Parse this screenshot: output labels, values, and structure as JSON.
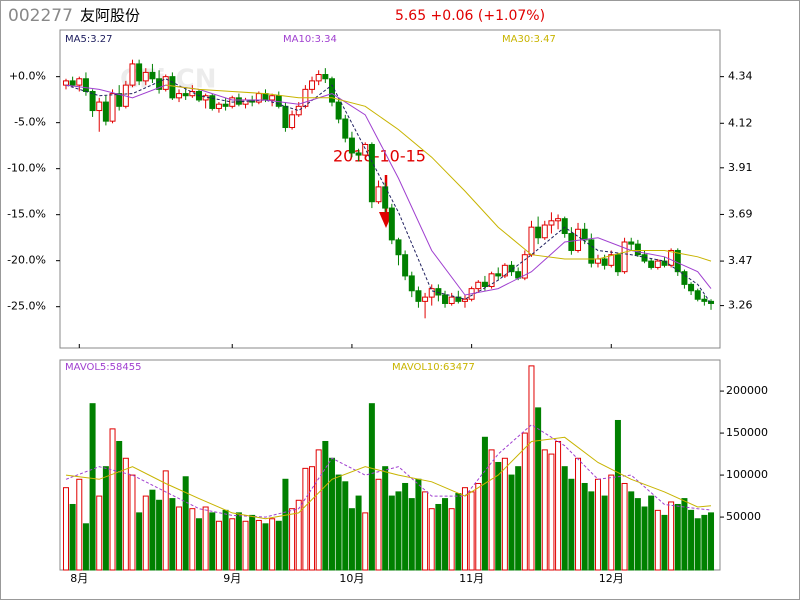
{
  "header": {
    "code": "002277",
    "name": "友阿股份",
    "quote": "5.65 +0.06 (+1.07%)"
  },
  "watermark": "CFi.CN",
  "chart_data": [
    {
      "type": "candlestick",
      "annotation": "2018-10-15",
      "up_color": "#e00000",
      "down_color": "#008000",
      "xlim": [
        -0.9,
        98.35
      ],
      "xticks": [
        {
          "value": 2,
          "label": "8月"
        },
        {
          "value": 25,
          "label": "9月"
        },
        {
          "value": 43,
          "label": "10月"
        },
        {
          "value": 61,
          "label": "11月"
        },
        {
          "value": 82,
          "label": "12月"
        }
      ],
      "ylim": [
        3.06,
        4.56
      ],
      "yticks": [
        4.34,
        4.12,
        3.91,
        3.69,
        3.47,
        3.26
      ],
      "y2lim": [
        -29.49,
        5.07
      ],
      "y2ticks": [
        {
          "value": 0,
          "label": "+0.0%"
        },
        {
          "value": -5,
          "label": "-5.0%"
        },
        {
          "value": -10,
          "label": "-10.0%"
        },
        {
          "value": -15,
          "label": "-15.0%"
        },
        {
          "value": -20,
          "label": "-20.0%"
        },
        {
          "value": -25,
          "label": "-25.0%"
        }
      ],
      "ohlc": [
        [
          4.3,
          4.33,
          4.28,
          4.32
        ],
        [
          4.32,
          4.34,
          4.29,
          4.3
        ],
        [
          4.3,
          4.34,
          4.27,
          4.33
        ],
        [
          4.33,
          4.36,
          4.25,
          4.27
        ],
        [
          4.27,
          4.28,
          4.15,
          4.18
        ],
        [
          4.18,
          4.24,
          4.08,
          4.22
        ],
        [
          4.22,
          4.25,
          4.11,
          4.13
        ],
        [
          4.13,
          4.28,
          4.12,
          4.26
        ],
        [
          4.26,
          4.3,
          4.18,
          4.2
        ],
        [
          4.2,
          4.32,
          4.19,
          4.3
        ],
        [
          4.3,
          4.42,
          4.29,
          4.4
        ],
        [
          4.4,
          4.42,
          4.3,
          4.32
        ],
        [
          4.32,
          4.38,
          4.3,
          4.36
        ],
        [
          4.36,
          4.4,
          4.31,
          4.33
        ],
        [
          4.33,
          4.37,
          4.26,
          4.28
        ],
        [
          4.28,
          4.35,
          4.27,
          4.34
        ],
        [
          4.34,
          4.36,
          4.23,
          4.24
        ],
        [
          4.24,
          4.28,
          4.22,
          4.26
        ],
        [
          4.26,
          4.29,
          4.23,
          4.25
        ],
        [
          4.25,
          4.3,
          4.24,
          4.27
        ],
        [
          4.27,
          4.28,
          4.22,
          4.23
        ],
        [
          4.23,
          4.26,
          4.19,
          4.25
        ],
        [
          4.25,
          4.26,
          4.18,
          4.19
        ],
        [
          4.19,
          4.22,
          4.17,
          4.21
        ],
        [
          4.21,
          4.24,
          4.18,
          4.2
        ],
        [
          4.2,
          4.25,
          4.19,
          4.24
        ],
        [
          4.24,
          4.26,
          4.2,
          4.21
        ],
        [
          4.21,
          4.24,
          4.19,
          4.23
        ],
        [
          4.23,
          4.25,
          4.2,
          4.22
        ],
        [
          4.22,
          4.27,
          4.21,
          4.26
        ],
        [
          4.26,
          4.28,
          4.22,
          4.23
        ],
        [
          4.23,
          4.26,
          4.2,
          4.25
        ],
        [
          4.25,
          4.27,
          4.19,
          4.2
        ],
        [
          4.2,
          4.22,
          4.08,
          4.1
        ],
        [
          4.1,
          4.18,
          4.09,
          4.16
        ],
        [
          4.16,
          4.22,
          4.15,
          4.2
        ],
        [
          4.2,
          4.3,
          4.19,
          4.28
        ],
        [
          4.28,
          4.34,
          4.26,
          4.32
        ],
        [
          4.32,
          4.37,
          4.3,
          4.35
        ],
        [
          4.35,
          4.38,
          4.31,
          4.33
        ],
        [
          4.33,
          4.34,
          4.2,
          4.22
        ],
        [
          4.22,
          4.24,
          4.12,
          4.14
        ],
        [
          4.14,
          4.16,
          4.03,
          4.05
        ],
        [
          4.05,
          4.08,
          3.96,
          3.98
        ],
        [
          3.98,
          4.0,
          3.94,
          3.97
        ],
        [
          3.97,
          4.03,
          3.95,
          4.02
        ],
        [
          4.02,
          4.03,
          3.72,
          3.75
        ],
        [
          3.75,
          3.85,
          3.74,
          3.82
        ],
        [
          3.82,
          3.84,
          3.7,
          3.72
        ],
        [
          3.72,
          3.74,
          3.55,
          3.57
        ],
        [
          3.57,
          3.58,
          3.45,
          3.5
        ],
        [
          3.5,
          3.52,
          3.38,
          3.4
        ],
        [
          3.4,
          3.42,
          3.3,
          3.33
        ],
        [
          3.33,
          3.35,
          3.25,
          3.28
        ],
        [
          3.28,
          3.32,
          3.2,
          3.3
        ],
        [
          3.3,
          3.36,
          3.26,
          3.34
        ],
        [
          3.34,
          3.36,
          3.28,
          3.31
        ],
        [
          3.31,
          3.33,
          3.25,
          3.27
        ],
        [
          3.27,
          3.32,
          3.26,
          3.3
        ],
        [
          3.3,
          3.33,
          3.27,
          3.28
        ],
        [
          3.28,
          3.31,
          3.25,
          3.29
        ],
        [
          3.29,
          3.35,
          3.28,
          3.34
        ],
        [
          3.34,
          3.38,
          3.32,
          3.37
        ],
        [
          3.37,
          3.4,
          3.33,
          3.35
        ],
        [
          3.35,
          3.42,
          3.34,
          3.41
        ],
        [
          3.41,
          3.44,
          3.38,
          3.4
        ],
        [
          3.4,
          3.46,
          3.39,
          3.45
        ],
        [
          3.45,
          3.47,
          3.4,
          3.42
        ],
        [
          3.42,
          3.44,
          3.38,
          3.39
        ],
        [
          3.39,
          3.52,
          3.38,
          3.5
        ],
        [
          3.5,
          3.66,
          3.49,
          3.63
        ],
        [
          3.63,
          3.68,
          3.55,
          3.58
        ],
        [
          3.58,
          3.66,
          3.57,
          3.64
        ],
        [
          3.64,
          3.7,
          3.6,
          3.66
        ],
        [
          3.66,
          3.69,
          3.62,
          3.67
        ],
        [
          3.67,
          3.68,
          3.58,
          3.6
        ],
        [
          3.6,
          3.63,
          3.5,
          3.52
        ],
        [
          3.52,
          3.65,
          3.51,
          3.62
        ],
        [
          3.62,
          3.65,
          3.55,
          3.57
        ],
        [
          3.57,
          3.6,
          3.44,
          3.46
        ],
        [
          3.46,
          3.5,
          3.44,
          3.48
        ],
        [
          3.48,
          3.5,
          3.43,
          3.45
        ],
        [
          3.45,
          3.52,
          3.44,
          3.5
        ],
        [
          3.5,
          3.51,
          3.4,
          3.42
        ],
        [
          3.42,
          3.58,
          3.41,
          3.56
        ],
        [
          3.56,
          3.58,
          3.52,
          3.55
        ],
        [
          3.55,
          3.57,
          3.49,
          3.5
        ],
        [
          3.5,
          3.52,
          3.46,
          3.47
        ],
        [
          3.47,
          3.48,
          3.43,
          3.44
        ],
        [
          3.44,
          3.48,
          3.43,
          3.47
        ],
        [
          3.47,
          3.49,
          3.44,
          3.45
        ],
        [
          3.45,
          3.53,
          3.44,
          3.52
        ],
        [
          3.52,
          3.53,
          3.4,
          3.42
        ],
        [
          3.42,
          3.43,
          3.34,
          3.36
        ],
        [
          3.36,
          3.37,
          3.31,
          3.33
        ],
        [
          3.33,
          3.34,
          3.28,
          3.29
        ],
        [
          3.29,
          3.31,
          3.26,
          3.28
        ],
        [
          3.28,
          3.29,
          3.24,
          3.27
        ]
      ],
      "series": [
        {
          "name": "MA5",
          "legend_label": "MA5:3.27",
          "color": "#202060",
          "x": [
            0,
            5,
            10,
            15,
            20,
            25,
            30,
            35,
            40,
            45,
            50,
            55,
            60,
            65,
            70,
            75,
            80,
            85,
            90,
            95,
            97
          ],
          "values": [
            4.3,
            4.25,
            4.26,
            4.33,
            4.25,
            4.22,
            4.23,
            4.18,
            4.3,
            4.0,
            3.7,
            3.33,
            3.29,
            3.38,
            3.5,
            3.63,
            3.52,
            3.5,
            3.47,
            3.36,
            3.27
          ]
        },
        {
          "name": "MA10",
          "legend_label": "MA10:3.34",
          "color": "#a040d0",
          "x": [
            0,
            5,
            10,
            15,
            20,
            25,
            30,
            35,
            40,
            45,
            50,
            55,
            60,
            65,
            70,
            75,
            80,
            85,
            90,
            95,
            97
          ],
          "values": [
            4.3,
            4.28,
            4.24,
            4.3,
            4.28,
            4.23,
            4.23,
            4.21,
            4.26,
            4.16,
            3.86,
            3.52,
            3.31,
            3.34,
            3.42,
            3.56,
            3.58,
            3.52,
            3.49,
            3.42,
            3.34
          ]
        },
        {
          "name": "MA30",
          "legend_label": "MA30:3.47",
          "color": "#c8b400",
          "x": [
            0,
            5,
            10,
            15,
            20,
            25,
            30,
            35,
            40,
            45,
            50,
            55,
            60,
            65,
            70,
            75,
            80,
            85,
            90,
            95,
            97
          ],
          "values": [
            null,
            null,
            null,
            4.3,
            4.28,
            4.27,
            4.26,
            4.24,
            4.24,
            4.2,
            4.09,
            3.96,
            3.8,
            3.63,
            3.5,
            3.48,
            3.48,
            3.52,
            3.52,
            3.49,
            3.47
          ]
        }
      ]
    },
    {
      "type": "bar",
      "xlim": [
        -0.9,
        98.35
      ],
      "ylim": [
        -13000,
        237000
      ],
      "yticks": [
        50000,
        100000,
        150000,
        200000
      ],
      "values": [
        85000,
        65000,
        95000,
        42000,
        185000,
        75000,
        110000,
        155000,
        140000,
        120000,
        100000,
        55000,
        75000,
        82000,
        70000,
        105000,
        72000,
        62000,
        98000,
        60000,
        48000,
        62000,
        55000,
        45000,
        58000,
        48000,
        55000,
        45000,
        52000,
        46000,
        42000,
        48000,
        45000,
        95000,
        60000,
        70000,
        108000,
        110000,
        130000,
        140000,
        120000,
        100000,
        92000,
        60000,
        75000,
        55000,
        185000,
        95000,
        110000,
        75000,
        80000,
        90000,
        72000,
        95000,
        80000,
        60000,
        65000,
        72000,
        60000,
        78000,
        85000,
        80000,
        90000,
        145000,
        130000,
        115000,
        120000,
        100000,
        110000,
        150000,
        230000,
        180000,
        130000,
        125000,
        140000,
        110000,
        95000,
        120000,
        90000,
        80000,
        95000,
        75000,
        100000,
        165000,
        90000,
        80000,
        72000,
        62000,
        75000,
        58000,
        52000,
        68000,
        65000,
        72000,
        58000,
        48000,
        52000,
        55000
      ],
      "series": [
        {
          "name": "MAVOL5",
          "legend_label": "MAVOL5:58455",
          "color": "#a040d0",
          "x": [
            0,
            5,
            10,
            15,
            20,
            25,
            30,
            35,
            40,
            45,
            50,
            55,
            60,
            65,
            70,
            75,
            80,
            85,
            90,
            95,
            97
          ],
          "values": [
            95000,
            110000,
            100000,
            80000,
            60000,
            52000,
            50000,
            60000,
            120000,
            100000,
            110000,
            75000,
            75000,
            125000,
            160000,
            135000,
            95000,
            100000,
            65000,
            60000,
            58455
          ]
        },
        {
          "name": "MAVOL10",
          "legend_label": "MAVOL10:63477",
          "color": "#c8b400",
          "x": [
            0,
            5,
            10,
            15,
            20,
            25,
            30,
            35,
            40,
            45,
            50,
            55,
            60,
            65,
            70,
            75,
            80,
            85,
            90,
            95,
            97
          ],
          "values": [
            100000,
            95000,
            110000,
            90000,
            72000,
            55000,
            48000,
            55000,
            95000,
            110000,
            100000,
            92000,
            75000,
            100000,
            140000,
            145000,
            115000,
            95000,
            80000,
            62000,
            63477
          ]
        }
      ]
    }
  ]
}
